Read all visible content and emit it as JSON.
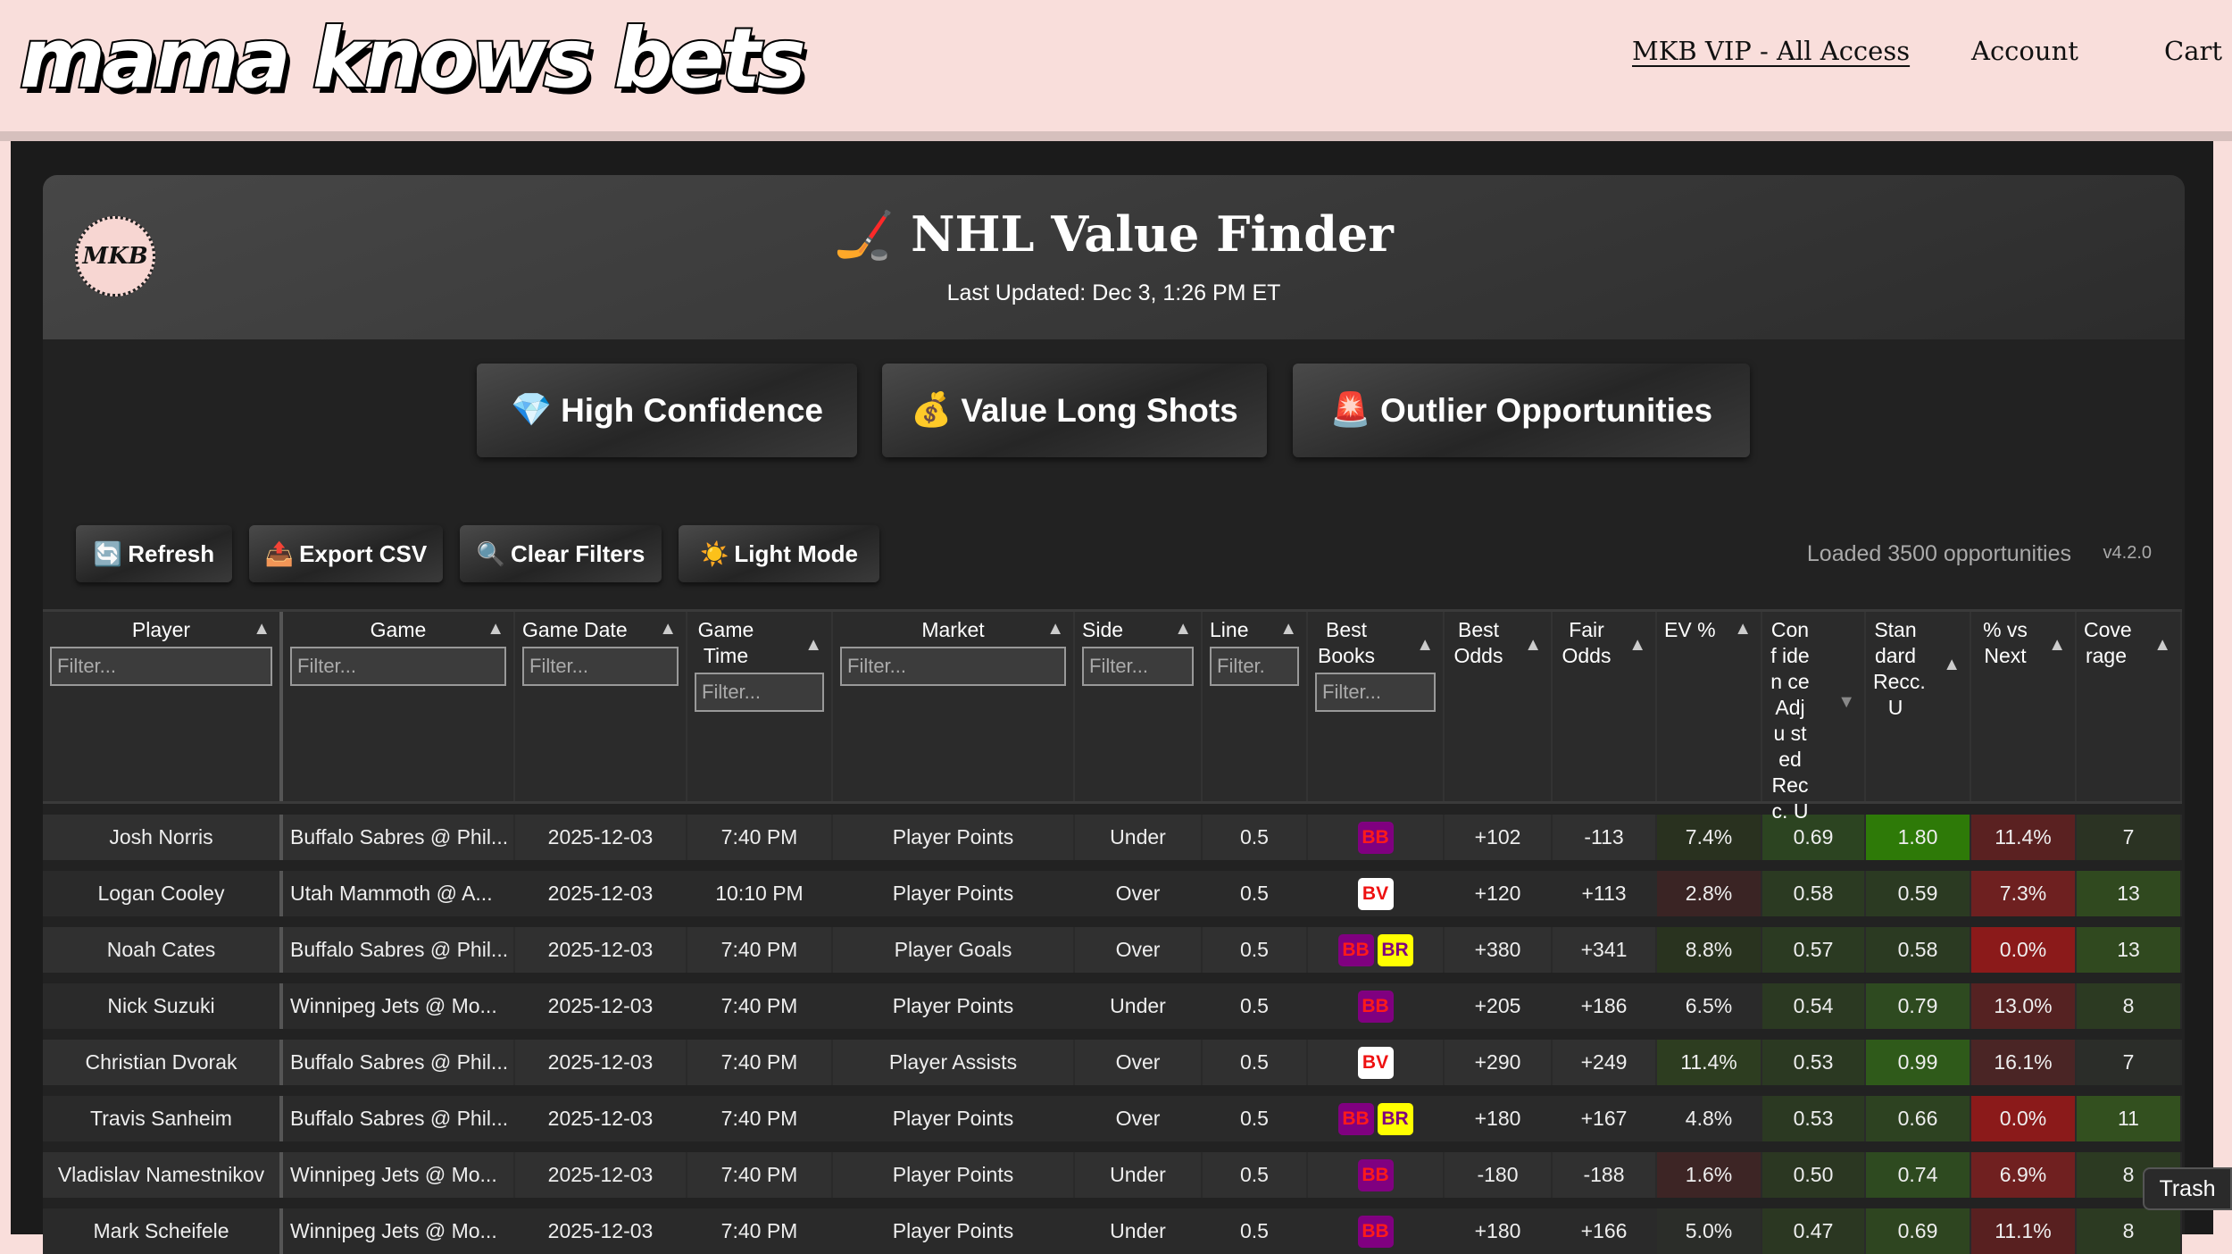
{
  "site": {
    "brand": "mama knows bets",
    "nav": [
      "MKB VIP - All Access",
      "Account",
      "Cart"
    ]
  },
  "header": {
    "logo_text": "MKB",
    "title": "🏒 NHL Value Finder",
    "last_updated": "Last Updated: Dec 3, 1:26 PM ET"
  },
  "views": [
    {
      "icon": "💎",
      "label": "High Confidence"
    },
    {
      "icon": "💰",
      "label": "Value Long Shots"
    },
    {
      "icon": "🚨",
      "label": "Outlier Opportunities"
    }
  ],
  "toolbar": {
    "buttons": [
      {
        "icon": "🔄",
        "label": "Refresh"
      },
      {
        "icon": "📤",
        "label": "Export CSV"
      },
      {
        "icon": "🔍",
        "label": "Clear Filters"
      },
      {
        "icon": "☀️",
        "label": "Light Mode"
      }
    ],
    "loaded": "Loaded 3500 opportunities",
    "version": "v4.2.0"
  },
  "filter_placeholder": "Filter...",
  "line_filter_placeholder": "Filter.",
  "columns": [
    {
      "key": "player",
      "label": "Player",
      "filter": true,
      "sort": "asc"
    },
    {
      "key": "game",
      "label": "Game",
      "filter": true,
      "sort": "asc"
    },
    {
      "key": "date",
      "label": "Game Date",
      "filter": true,
      "sort": "asc"
    },
    {
      "key": "time",
      "label": "Game Time",
      "filter": true,
      "sort": "asc"
    },
    {
      "key": "market",
      "label": "Market",
      "filter": true,
      "sort": "asc"
    },
    {
      "key": "side",
      "label": "Side",
      "filter": true,
      "sort": "asc"
    },
    {
      "key": "line",
      "label": "Line",
      "filter": true,
      "sort": "asc"
    },
    {
      "key": "books",
      "label": "Best Books",
      "filter": true,
      "sort": "asc"
    },
    {
      "key": "best",
      "label": "Best Odds",
      "filter": false,
      "sort": "asc"
    },
    {
      "key": "fair",
      "label": "Fair Odds",
      "filter": false,
      "sort": "asc"
    },
    {
      "key": "ev",
      "label": "EV %",
      "filter": false,
      "sort": "asc"
    },
    {
      "key": "conf",
      "label": "Conf iden ce Adju sted Recc. U",
      "filter": false,
      "sort": "desc"
    },
    {
      "key": "std",
      "label": "Stan dard Recc. U",
      "filter": false,
      "sort": "asc"
    },
    {
      "key": "vs",
      "label": "% vs Next",
      "filter": false,
      "sort": "asc"
    },
    {
      "key": "cov",
      "label": "Cove rage",
      "filter": false,
      "sort": "asc"
    }
  ],
  "book_styles": {
    "BB": {
      "bg": "#800080",
      "fg": "#ff1a1a"
    },
    "BR": {
      "bg": "#ffff00",
      "fg": "#800080"
    },
    "BV": {
      "bg": "#ffffff",
      "fg": "#ee1111"
    }
  },
  "rows": [
    {
      "player": "Josh Norris",
      "game": "Buffalo Sabres @ Phil...",
      "date": "2025-12-03",
      "time": "7:40 PM",
      "market": "Player Points",
      "side": "Under",
      "line": "0.5",
      "books": [
        "BB"
      ],
      "best": "+102",
      "fair": "-113",
      "ev": "7.4%",
      "conf": "0.69",
      "std": "1.80",
      "vs": "11.4%",
      "cov": "7",
      "colors": {
        "ev": "#29311f",
        "conf": "#2c4421",
        "std": "#2e7a08",
        "vs": "#5a2121",
        "cov": "#2b3323"
      }
    },
    {
      "player": "Logan Cooley",
      "game": "Utah Mammoth @ A...",
      "date": "2025-12-03",
      "time": "10:10 PM",
      "market": "Player Points",
      "side": "Over",
      "line": "0.5",
      "books": [
        "BV"
      ],
      "best": "+120",
      "fair": "+113",
      "ev": "2.8%",
      "conf": "0.58",
      "std": "0.59",
      "vs": "7.3%",
      "cov": "13",
      "colors": {
        "ev": "#3a2424",
        "conf": "#2b3a22",
        "std": "#2b3a22",
        "vs": "#6e2020",
        "cov": "#30491f"
      }
    },
    {
      "player": "Noah Cates",
      "game": "Buffalo Sabres @ Phil...",
      "date": "2025-12-03",
      "time": "7:40 PM",
      "market": "Player Goals",
      "side": "Over",
      "line": "0.5",
      "books": [
        "BB",
        "BR"
      ],
      "best": "+380",
      "fair": "+341",
      "ev": "8.8%",
      "conf": "0.57",
      "std": "0.58",
      "vs": "0.0%",
      "cov": "13",
      "colors": {
        "ev": "#29331f",
        "conf": "#2b3a22",
        "std": "#2b3a22",
        "vs": "#8b1a1a",
        "cov": "#30491f"
      }
    },
    {
      "player": "Nick Suzuki",
      "game": "Winnipeg Jets @ Mo...",
      "date": "2025-12-03",
      "time": "7:40 PM",
      "market": "Player Points",
      "side": "Under",
      "line": "0.5",
      "books": [
        "BB"
      ],
      "best": "+205",
      "fair": "+186",
      "ev": "6.5%",
      "conf": "0.54",
      "std": "0.79",
      "vs": "13.0%",
      "cov": "8",
      "colors": {
        "ev": "#2a2a2a",
        "conf": "#2b3922",
        "std": "#2e4a20",
        "vs": "#552222",
        "cov": "#2c3a22"
      }
    },
    {
      "player": "Christian Dvorak",
      "game": "Buffalo Sabres @ Phil...",
      "date": "2025-12-03",
      "time": "7:40 PM",
      "market": "Player Assists",
      "side": "Over",
      "line": "0.5",
      "books": [
        "BV"
      ],
      "best": "+290",
      "fair": "+249",
      "ev": "11.4%",
      "conf": "0.53",
      "std": "0.99",
      "vs": "16.1%",
      "cov": "7",
      "colors": {
        "ev": "#2d3d20",
        "conf": "#2b3922",
        "std": "#2f5a1a",
        "vs": "#4a2525",
        "cov": "#2b2d29"
      }
    },
    {
      "player": "Travis Sanheim",
      "game": "Buffalo Sabres @ Phil...",
      "date": "2025-12-03",
      "time": "7:40 PM",
      "market": "Player Points",
      "side": "Over",
      "line": "0.5",
      "books": [
        "BB",
        "BR"
      ],
      "best": "+180",
      "fair": "+167",
      "ev": "4.8%",
      "conf": "0.53",
      "std": "0.66",
      "vs": "0.0%",
      "cov": "11",
      "colors": {
        "ev": "#2a2a2a",
        "conf": "#2b3922",
        "std": "#2d4221",
        "vs": "#8b1a1a",
        "cov": "#33501f"
      }
    },
    {
      "player": "Vladislav Namestnikov",
      "game": "Winnipeg Jets @ Mo...",
      "date": "2025-12-03",
      "time": "7:40 PM",
      "market": "Player Points",
      "side": "Under",
      "line": "0.5",
      "books": [
        "BB"
      ],
      "best": "-180",
      "fair": "-188",
      "ev": "1.6%",
      "conf": "0.50",
      "std": "0.74",
      "vs": "6.9%",
      "cov": "8",
      "colors": {
        "ev": "#3d2525",
        "conf": "#2b3722",
        "std": "#2e4a20",
        "vs": "#702020",
        "cov": "#2c3a22"
      }
    },
    {
      "player": "Mark Scheifele",
      "game": "Winnipeg Jets @ Mo...",
      "date": "2025-12-03",
      "time": "7:40 PM",
      "market": "Player Points",
      "side": "Under",
      "line": "0.5",
      "books": [
        "BB"
      ],
      "best": "+180",
      "fair": "+166",
      "ev": "5.0%",
      "conf": "0.47",
      "std": "0.69",
      "vs": "11.1%",
      "cov": "8",
      "colors": {
        "ev": "#2b2d29",
        "conf": "#2b3722",
        "std": "#2e4520",
        "vs": "#582020",
        "cov": "#2c3a22"
      }
    }
  ],
  "tooltip": "Trash"
}
